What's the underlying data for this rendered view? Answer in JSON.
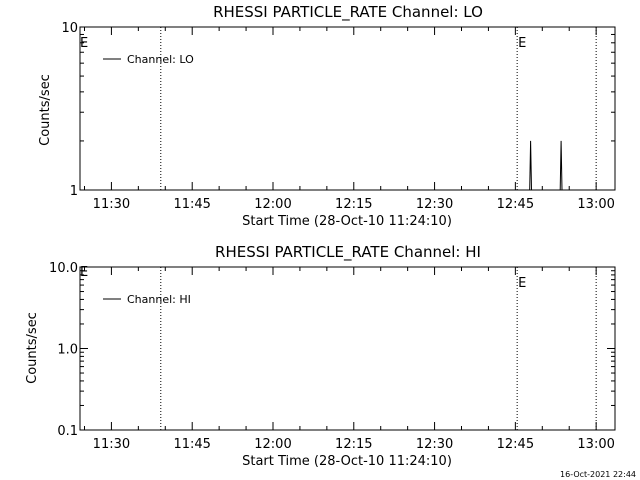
{
  "chart_data": [
    {
      "type": "line",
      "title": "RHESSI PARTICLE_RATE Channel: LO",
      "xlabel": "Start Time (28-Oct-10 11:24:10)",
      "ylabel": "Counts/sec",
      "y_scale": "log",
      "ylim": [
        1,
        10
      ],
      "y_ticks": [
        "1",
        "10"
      ],
      "x_range": [
        "11:24:10",
        "13:03:30"
      ],
      "x_ticks": [
        "11:30",
        "11:45",
        "12:00",
        "12:15",
        "12:30",
        "12:45",
        "13:00"
      ],
      "markers": [
        {
          "time": "11:39:10",
          "label": ""
        },
        {
          "time": "12:45:20",
          "label": "E"
        },
        {
          "time": "13:00:00",
          "label": ""
        }
      ],
      "left_marker_label": "E",
      "legend": "top-left",
      "series": [
        {
          "name": "Channel: LO",
          "points": [
            {
              "x": "12:47:40",
              "y": 1
            },
            {
              "x": "12:47:50",
              "y": 2
            },
            {
              "x": "12:48:00",
              "y": 1
            },
            {
              "x": "12:53:20",
              "y": 1
            },
            {
              "x": "12:53:30",
              "y": 2
            },
            {
              "x": "12:53:40",
              "y": 1
            }
          ]
        }
      ]
    },
    {
      "type": "line",
      "title": "RHESSI PARTICLE_RATE Channel: HI",
      "xlabel": "Start Time (28-Oct-10 11:24:10)",
      "ylabel": "Counts/sec",
      "y_scale": "log",
      "ylim": [
        0.1,
        10
      ],
      "y_ticks": [
        "0.1",
        "1.0",
        "10.0"
      ],
      "x_range": [
        "11:24:10",
        "13:03:30"
      ],
      "x_ticks": [
        "11:30",
        "11:45",
        "12:00",
        "12:15",
        "12:30",
        "12:45",
        "13:00"
      ],
      "markers": [
        {
          "time": "11:39:10",
          "label": ""
        },
        {
          "time": "12:45:20",
          "label": "E"
        },
        {
          "time": "13:00:00",
          "label": ""
        }
      ],
      "left_marker_label": "E",
      "legend": "top-left",
      "series": [
        {
          "name": "Channel: HI",
          "points": []
        }
      ]
    }
  ],
  "footer": {
    "timestamp": "16-Oct-2021 22:44"
  }
}
